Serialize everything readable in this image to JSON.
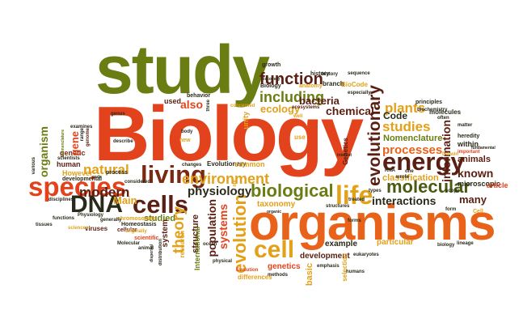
{
  "palette": {
    "olive": "#6a7d12",
    "dark_olive": "#4a5a12",
    "orange": "#e8621a",
    "red_orange": "#e2431c",
    "gold": "#e3a019",
    "dark_brown": "#5a1f12",
    "maroon": "#7a2a12",
    "gray": "#7a7a6a",
    "dark": "#2a2a1a"
  },
  "words": [
    "study",
    "Biology",
    "organisms",
    "species",
    "DNA",
    "cells",
    "living",
    "life",
    "energy",
    "biological",
    "evolution",
    "cell",
    "molecular",
    "function",
    "including",
    "ecology",
    "bacteria",
    "chemical",
    "plants",
    "studies",
    "processes",
    "environment",
    "physiology",
    "modern",
    "natural",
    "theory",
    "population",
    "systems",
    "evolutionary",
    "information",
    "known",
    "interactions",
    "many",
    "classification",
    "Code",
    "Nomenclature",
    "animals",
    "organism",
    "genetic",
    "human",
    "gene",
    "Main",
    "studied",
    "structure",
    "system",
    "International",
    "development",
    "example",
    "particular",
    "taxonomy",
    "Evolutionary",
    "molecules",
    "microscopic",
    "article",
    "genetics",
    "basic",
    "selection",
    "Genetics",
    "unity",
    "common",
    "research",
    "differences",
    "cellular",
    "scientific",
    "viruses",
    "However",
    "also",
    "used",
    "growth",
    "history",
    "branch",
    "BioCode",
    "Biology",
    "behavior",
    "anatomy",
    "especially",
    "well",
    "concerned",
    "ecosystems",
    "principles",
    "heredity",
    "within",
    "important",
    "fundamental",
    "Darwin",
    "biochemistry",
    "often",
    "matter",
    "body",
    "describe",
    "genus",
    "new",
    "use",
    "changes",
    "considered",
    "Homeostasis",
    "chromosomes",
    "physical",
    "Molecular",
    "animal",
    "distribution",
    "originally",
    "sciences",
    "functions",
    "tissues",
    "disciplines",
    "scientists",
    "various",
    "examines",
    "nomenclature",
    "range",
    "genome",
    "discovery",
    "developmental",
    "life",
    "process",
    "code",
    "forms",
    "Physiology",
    "generally",
    "dispersal",
    "ocean",
    "humans",
    "emphasis",
    "methods",
    "Evolution",
    "eukaryotes",
    "biology",
    "Cell",
    "form",
    "one",
    "RNA",
    "wrote",
    "types",
    "scope",
    "treated",
    "lineage",
    "structures",
    "organic",
    "interest",
    "three",
    "history",
    "sequence"
  ]
}
